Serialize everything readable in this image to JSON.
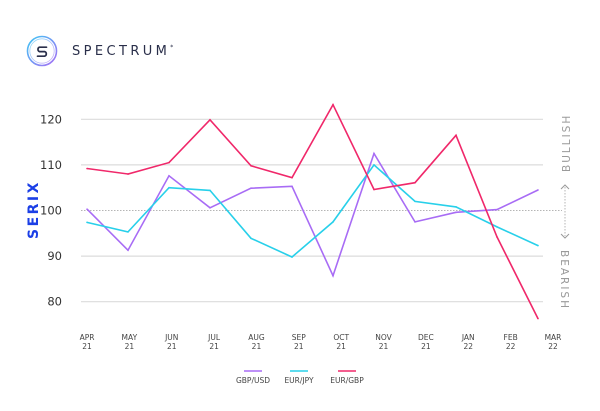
{
  "brand": {
    "name": "SPECTRUM",
    "mark": "S",
    "trademark": "*",
    "colors": {
      "ring_start": "#3fc8f4",
      "ring_end": "#a86cf5",
      "text": "#2a2f4a"
    }
  },
  "chart_data": {
    "type": "line",
    "title": "",
    "xlabel": "",
    "ylabel": "SERIX",
    "ylim": [
      76,
      124
    ],
    "yticks": [
      80,
      90,
      100,
      110,
      120
    ],
    "ytick_labels": [
      "80",
      "90",
      "100",
      "110",
      "120"
    ],
    "reference_line": 100,
    "grid": true,
    "categories": [
      [
        "APR",
        "21"
      ],
      [
        "MAY",
        "21"
      ],
      [
        "JUN",
        "21"
      ],
      [
        "JUL",
        "21"
      ],
      [
        "AUG",
        "21"
      ],
      [
        "SEP",
        "21"
      ],
      [
        "OCT",
        "21"
      ],
      [
        "NOV",
        "21"
      ],
      [
        "DEC",
        "21"
      ],
      [
        "JAN",
        "22"
      ],
      [
        "FEB",
        "22"
      ],
      [
        "MAR",
        "22"
      ]
    ],
    "series": [
      {
        "name": "GBP/USD",
        "color": "#a86cf5",
        "values": [
          100.3,
          91.3,
          107.6,
          100.6,
          104.9,
          105.3,
          85.7,
          112.5,
          97.5,
          99.6,
          100.2,
          104.5
        ]
      },
      {
        "name": "EUR/JPY",
        "color": "#28d0ea",
        "values": [
          97.4,
          95.3,
          105.0,
          104.4,
          93.9,
          89.8,
          97.5,
          110.0,
          102.0,
          100.8,
          96.4,
          92.3
        ]
      },
      {
        "name": "EUR/GBP",
        "color": "#f0286a",
        "values": [
          109.2,
          108.0,
          110.5,
          119.9,
          109.8,
          107.2,
          123.2,
          104.6,
          106.1,
          116.5,
          94.2,
          76.3
        ]
      }
    ],
    "legend": {
      "position": "bottom",
      "entries": [
        "GBP/USD",
        "EUR/JPY",
        "EUR/GBP"
      ]
    },
    "side_annotations": {
      "up": "BULLISH",
      "down": "BEARISH"
    }
  }
}
